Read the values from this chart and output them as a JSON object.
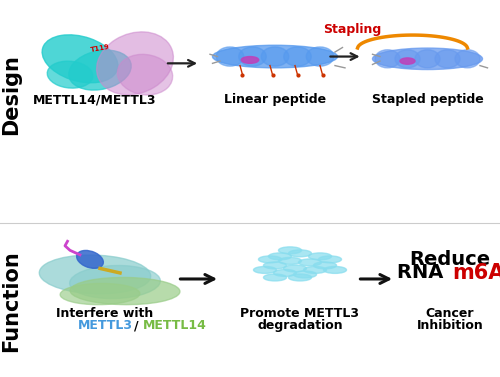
{
  "top_bg": "#ffffff",
  "bottom_bg": "#e9e9e9",
  "top_label": "Design",
  "bottom_label": "Function",
  "top_sublabels": [
    "METTL14/METTL3",
    "Linear peptide",
    "Stapled peptide"
  ],
  "stapling_label": "Stapling",
  "arrow_color": "#222222",
  "stapling_color": "#cc0000",
  "m6a_color": "#cc0000",
  "mettl3_color": "#4499dd",
  "mettl14_color": "#77bb44",
  "side_label_fontsize": 15,
  "sublabel_fontsize": 9,
  "reduce_fontsize": 14,
  "stapling_fontsize": 9,
  "bubble_color": "#88ddee",
  "protein1_color": "#22cccc",
  "protein2_color": "#cc88cc",
  "helix_color": "#5599ee",
  "helix2_color": "#6699ee",
  "staple_color": "#ee8800",
  "bot_protein1_color": "#88cccc",
  "bot_protein2_color": "#99cc88",
  "bot_helix_color": "#3366cc",
  "bot_tail_color": "#cc44cc",
  "bot_gold_color": "#ccaa22"
}
